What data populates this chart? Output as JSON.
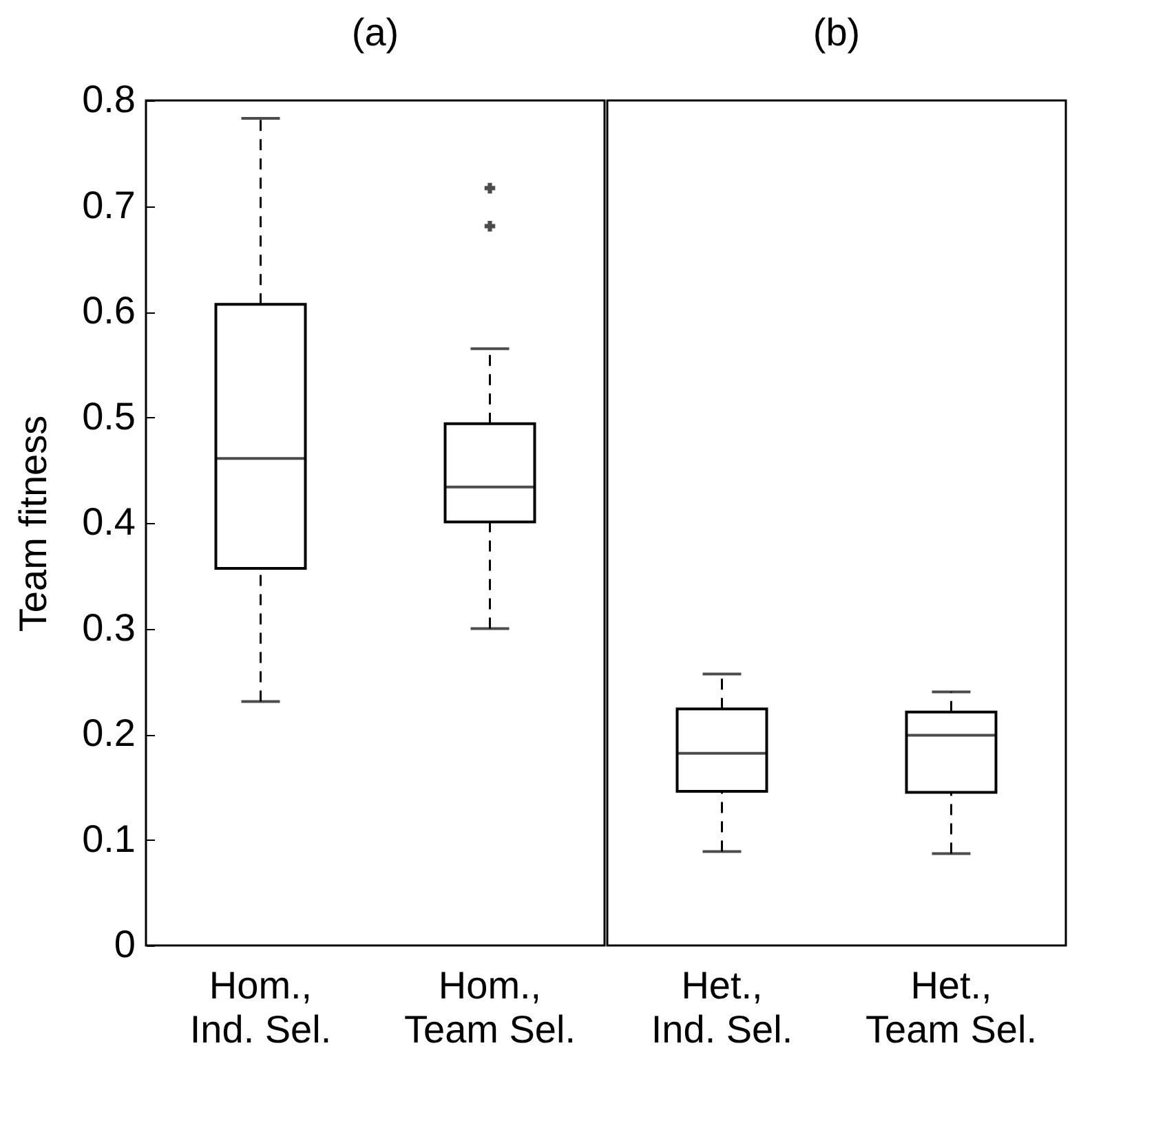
{
  "chart_data": [
    {
      "type": "box",
      "title": "(a)",
      "ylabel": "Team fitness",
      "categories": [
        "Hom.,\nInd. Sel.",
        "Hom.,\nTeam Sel."
      ],
      "ylim": [
        0,
        0.8
      ],
      "yticks": [
        0,
        0.1,
        0.2,
        0.3,
        0.4,
        0.5,
        0.6,
        0.7,
        0.8
      ],
      "boxes": [
        {
          "low": 0.231,
          "q1": 0.357,
          "median": 0.461,
          "q3": 0.607,
          "high": 0.783
        },
        {
          "low": 0.3,
          "q1": 0.401,
          "median": 0.434,
          "q3": 0.494,
          "high": 0.565,
          "outliers": [
            0.681,
            0.717
          ]
        }
      ]
    },
    {
      "type": "box",
      "title": "(b)",
      "categories": [
        "Het.,\nInd. Sel.",
        "Het.,\nTeam Sel."
      ],
      "ylim": [
        0,
        0.8
      ],
      "yticks": [
        0,
        0.1,
        0.2,
        0.3,
        0.4,
        0.5,
        0.6,
        0.7,
        0.8
      ],
      "tick_labels": "x",
      "boxes": [
        {
          "low": 0.089,
          "q1": 0.146,
          "median": 0.182,
          "q3": 0.224,
          "high": 0.257
        },
        {
          "low": 0.087,
          "q1": 0.145,
          "median": 0.199,
          "q3": 0.221,
          "high": 0.24
        }
      ]
    }
  ]
}
